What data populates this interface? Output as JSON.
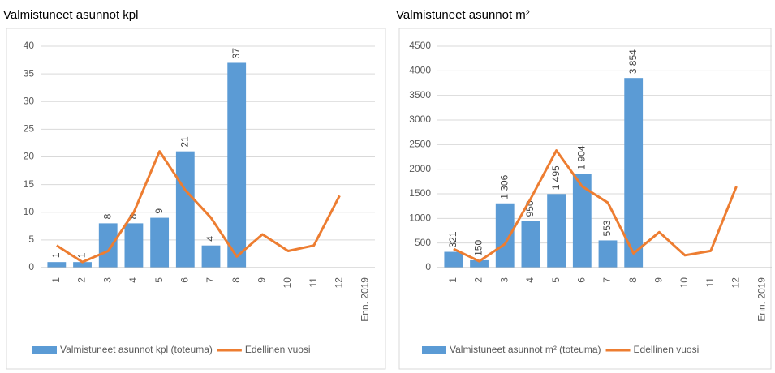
{
  "chart_data": [
    {
      "type": "bar",
      "title": "Valmistuneet asunnot kpl",
      "categories": [
        "1",
        "2",
        "3",
        "4",
        "5",
        "6",
        "7",
        "8",
        "9",
        "10",
        "11",
        "12",
        "Enn. 2019"
      ],
      "ylim": [
        0,
        40
      ],
      "yticks": [
        0,
        5,
        10,
        15,
        20,
        25,
        30,
        35,
        40
      ],
      "grid": true,
      "legend": "bottom",
      "series": [
        {
          "name": "Valmistuneet asunnot kpl (toteuma)",
          "type": "bar",
          "color": "#5b9bd5",
          "values": [
            1,
            1,
            8,
            8,
            9,
            21,
            4,
            37,
            null,
            null,
            null,
            null,
            null
          ]
        },
        {
          "name": "Edellinen vuosi",
          "type": "line",
          "color": "#ed7d31",
          "values": [
            4,
            1,
            3,
            10,
            21,
            14,
            9,
            2,
            6,
            3,
            4,
            13,
            null
          ]
        }
      ]
    },
    {
      "type": "bar",
      "title": "Valmistuneet asunnot  m²",
      "categories": [
        "1",
        "2",
        "3",
        "4",
        "5",
        "6",
        "7",
        "8",
        "9",
        "10",
        "11",
        "12",
        "Enn. 2019"
      ],
      "ylim": [
        0,
        4500
      ],
      "yticks": [
        0,
        500,
        1000,
        1500,
        2000,
        2500,
        3000,
        3500,
        4000,
        4500
      ],
      "grid": true,
      "legend": "bottom",
      "series": [
        {
          "name": "Valmistuneet asunnot m² (toteuma)",
          "type": "bar",
          "color": "#5b9bd5",
          "values": [
            321,
            150,
            1306,
            950,
            1495,
            1904,
            553,
            3854,
            null,
            null,
            null,
            null,
            null
          ],
          "value_labels": [
            "321",
            "150",
            "1 306",
            "950",
            "1 495",
            "1 904",
            "553",
            "3 854",
            null,
            null,
            null,
            null,
            null
          ]
        },
        {
          "name": "Edellinen vuosi",
          "type": "line",
          "color": "#ed7d31",
          "values": [
            380,
            130,
            480,
            1400,
            2380,
            1650,
            1320,
            290,
            720,
            250,
            340,
            1650,
            null
          ]
        }
      ]
    }
  ]
}
